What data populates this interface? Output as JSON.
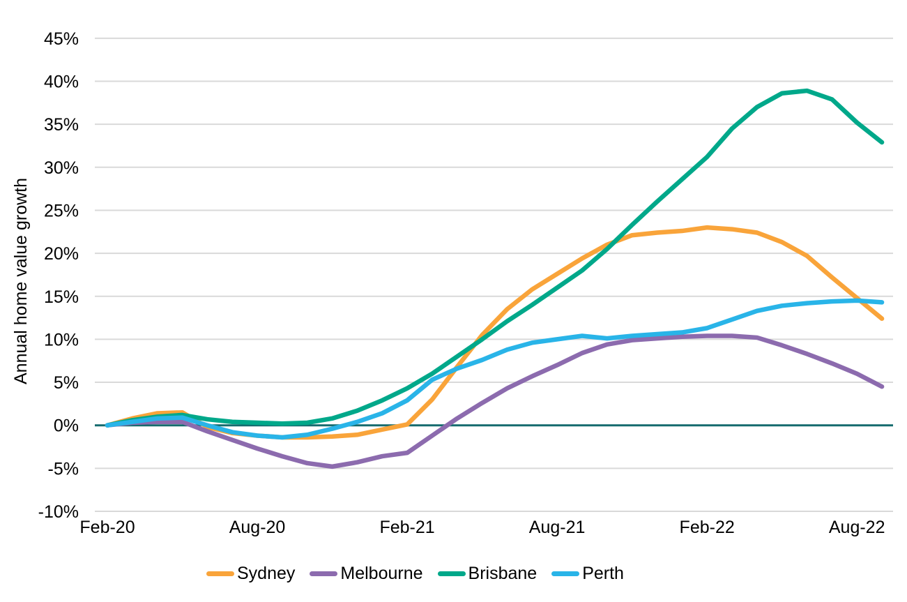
{
  "chart_data": {
    "type": "line",
    "title": "",
    "ylabel": "Annual home value growth",
    "xlabel": "",
    "ylim": [
      -10,
      45
    ],
    "y_tick_step": 5,
    "y_ticks": [
      45,
      40,
      35,
      30,
      25,
      20,
      15,
      10,
      5,
      0,
      -5,
      -10
    ],
    "y_tick_suffix": "%",
    "grid": true,
    "grid_color": "#d9d9d9",
    "zero_line_color": "#156b6e",
    "background_color": "#ffffff",
    "legend_position": "bottom",
    "x": [
      "Feb-20",
      "Mar-20",
      "Apr-20",
      "May-20",
      "Jun-20",
      "Jul-20",
      "Aug-20",
      "Sep-20",
      "Oct-20",
      "Nov-20",
      "Dec-20",
      "Jan-21",
      "Feb-21",
      "Mar-21",
      "Apr-21",
      "May-21",
      "Jun-21",
      "Jul-21",
      "Aug-21",
      "Sep-21",
      "Oct-21",
      "Nov-21",
      "Dec-21",
      "Jan-22",
      "Feb-22",
      "Mar-22",
      "Apr-22",
      "May-22",
      "Jun-22",
      "Jul-22",
      "Aug-22",
      "Sep-22"
    ],
    "x_tick_labels": [
      "Feb-20",
      "Aug-20",
      "Feb-21",
      "Aug-21",
      "Feb-22",
      "Aug-22"
    ],
    "series": [
      {
        "name": "Sydney",
        "color": "#f9a43a",
        "values": [
          0.0,
          0.8,
          1.4,
          1.5,
          -0.2,
          -0.9,
          -1.2,
          -1.4,
          -1.4,
          -1.3,
          -1.1,
          -0.5,
          0.1,
          3.0,
          6.8,
          10.5,
          13.5,
          15.8,
          17.6,
          19.4,
          21.0,
          22.1,
          22.4,
          22.6,
          23.0,
          22.8,
          22.4,
          21.3,
          19.7,
          17.2,
          14.8,
          12.4
        ]
      },
      {
        "name": "Melbourne",
        "color": "#8c6bae",
        "values": [
          0.0,
          0.3,
          0.4,
          0.4,
          -0.7,
          -1.7,
          -2.7,
          -3.6,
          -4.4,
          -4.8,
          -4.3,
          -3.6,
          -3.2,
          -1.2,
          0.8,
          2.6,
          4.3,
          5.7,
          7.0,
          8.4,
          9.4,
          9.9,
          10.1,
          10.3,
          10.4,
          10.4,
          10.2,
          9.3,
          8.3,
          7.2,
          6.0,
          4.5
        ]
      },
      {
        "name": "Brisbane",
        "color": "#00a88a",
        "values": [
          0.0,
          0.6,
          1.0,
          1.2,
          0.7,
          0.4,
          0.3,
          0.2,
          0.3,
          0.8,
          1.7,
          2.9,
          4.3,
          6.0,
          8.0,
          10.0,
          12.1,
          14.0,
          16.0,
          18.0,
          20.5,
          23.3,
          26.0,
          28.6,
          31.2,
          34.5,
          37.0,
          38.6,
          38.9,
          37.9,
          35.2,
          32.9
        ]
      },
      {
        "name": "Perth",
        "color": "#29b4e8",
        "values": [
          0.0,
          0.4,
          0.8,
          0.9,
          0.0,
          -0.8,
          -1.2,
          -1.4,
          -1.1,
          -0.4,
          0.4,
          1.4,
          2.9,
          5.3,
          6.6,
          7.6,
          8.8,
          9.6,
          10.0,
          10.4,
          10.1,
          10.4,
          10.6,
          10.8,
          11.3,
          12.3,
          13.3,
          13.9,
          14.2,
          14.4,
          14.5,
          14.3
        ]
      }
    ]
  }
}
